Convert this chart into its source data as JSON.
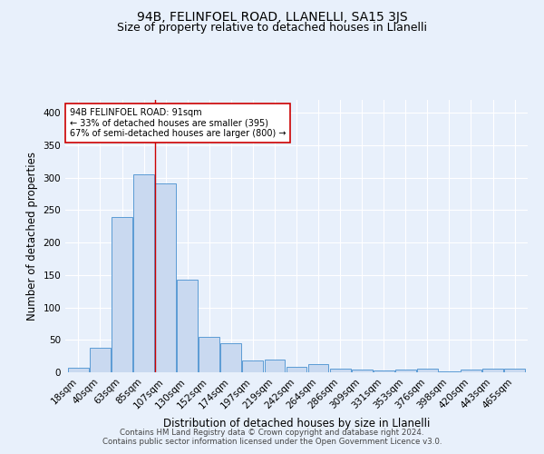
{
  "title": "94B, FELINFOEL ROAD, LLANELLI, SA15 3JS",
  "subtitle": "Size of property relative to detached houses in Llanelli",
  "xlabel": "Distribution of detached houses by size in Llanelli",
  "ylabel": "Number of detached properties",
  "footnote1": "Contains HM Land Registry data © Crown copyright and database right 2024.",
  "footnote2": "Contains public sector information licensed under the Open Government Licence v3.0.",
  "bar_labels": [
    "18sqm",
    "40sqm",
    "63sqm",
    "85sqm",
    "107sqm",
    "130sqm",
    "152sqm",
    "174sqm",
    "197sqm",
    "219sqm",
    "242sqm",
    "264sqm",
    "286sqm",
    "309sqm",
    "331sqm",
    "353sqm",
    "376sqm",
    "398sqm",
    "420sqm",
    "443sqm",
    "465sqm"
  ],
  "bar_values": [
    7,
    38,
    240,
    305,
    291,
    143,
    54,
    45,
    18,
    20,
    9,
    12,
    5,
    4,
    3,
    4,
    5,
    1,
    4,
    5,
    5
  ],
  "bar_color": "#c9d9f0",
  "bar_edge_color": "#5b9bd5",
  "vline_x": 3.5,
  "vline_color": "#cc0000",
  "annotation_text": "94B FELINFOEL ROAD: 91sqm\n← 33% of detached houses are smaller (395)\n67% of semi-detached houses are larger (800) →",
  "annotation_box_color": "white",
  "annotation_border_color": "#cc0000",
  "ylim": [
    0,
    420
  ],
  "yticks": [
    0,
    50,
    100,
    150,
    200,
    250,
    300,
    350,
    400
  ],
  "bg_color": "#e8f0fb",
  "grid_color": "white",
  "title_fontsize": 10,
  "subtitle_fontsize": 9,
  "axis_label_fontsize": 8.5,
  "tick_fontsize": 7.5,
  "footnote_fontsize": 6.2
}
